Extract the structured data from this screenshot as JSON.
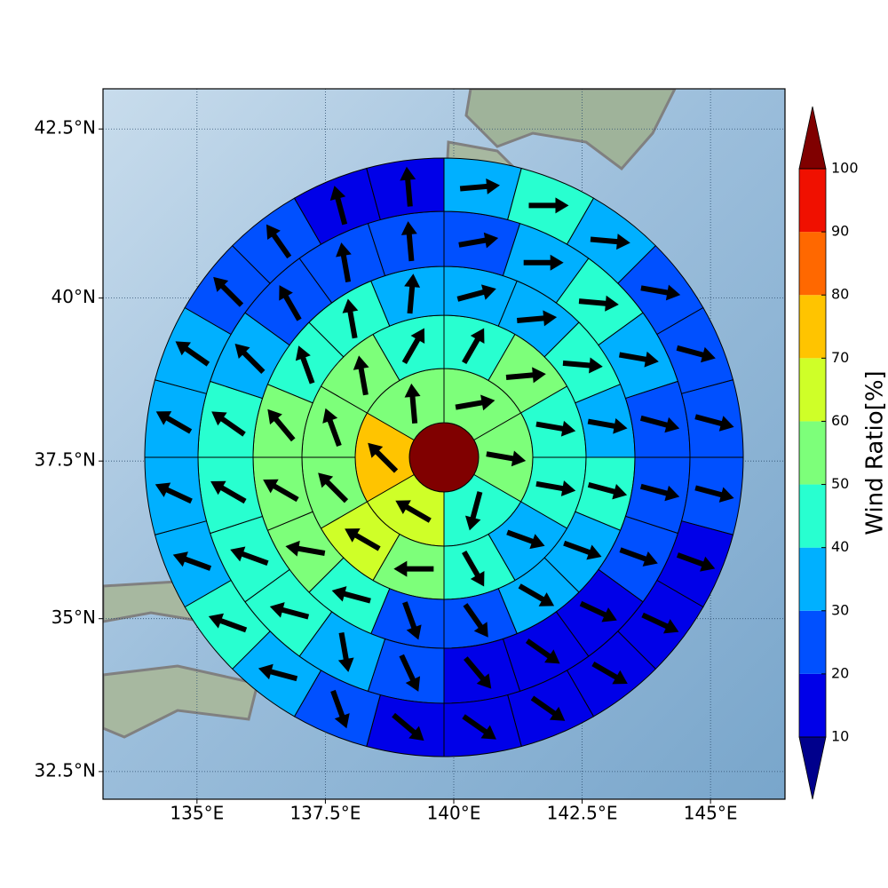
{
  "chart_data": {
    "type": "polar_map",
    "projection": "mercator",
    "xlim": [
      133.17,
      146.45
    ],
    "ylim": [
      32.04,
      43.08
    ],
    "grid": true,
    "xticks": [
      {
        "value": 135,
        "label": "135°E"
      },
      {
        "value": 137.5,
        "label": "137.5°E"
      },
      {
        "value": 140,
        "label": "140°E"
      },
      {
        "value": 142.5,
        "label": "142.5°E"
      },
      {
        "value": 145,
        "label": "145°E"
      }
    ],
    "yticks": [
      {
        "value": 32.5,
        "label": "32.5°N"
      },
      {
        "value": 35,
        "label": "35°N"
      },
      {
        "value": 37.5,
        "label": "37.5°N"
      },
      {
        "value": 40,
        "label": "40°N"
      },
      {
        "value": 42.5,
        "label": "42.5°N"
      }
    ],
    "rings": [
      {
        "values": [
          100
        ]
      },
      {
        "values": [
          55,
          55,
          45,
          65,
          75,
          55
        ],
        "directions": [
          80,
          100,
          195,
          300,
          315,
          355
        ]
      },
      {
        "values": [
          45,
          55,
          45,
          45,
          35,
          45,
          55,
          65,
          55,
          55,
          55,
          45
        ],
        "directions": [
          30,
          85,
          100,
          100,
          110,
          150,
          270,
          300,
          315,
          340,
          350,
          30
        ]
      },
      {
        "values": [
          35,
          35,
          45,
          35,
          45,
          35,
          35,
          25,
          25,
          45,
          55,
          55,
          55,
          45,
          45,
          35
        ],
        "directions": [
          75,
          85,
          95,
          100,
          105,
          110,
          120,
          145,
          160,
          285,
          280,
          300,
          320,
          340,
          350,
          5
        ]
      },
      {
        "values": [
          25,
          35,
          45,
          35,
          25,
          25,
          25,
          15,
          15,
          15,
          25,
          35,
          45,
          45,
          45,
          45,
          35,
          25,
          25,
          25
        ],
        "directions": [
          80,
          90,
          95,
          100,
          105,
          105,
          110,
          115,
          125,
          140,
          155,
          170,
          285,
          290,
          300,
          305,
          315,
          330,
          350,
          355
        ]
      },
      {
        "values": [
          35,
          45,
          35,
          25,
          25,
          25,
          25,
          15,
          15,
          15,
          15,
          15,
          15,
          25,
          35,
          45,
          35,
          35,
          35,
          35,
          25,
          25,
          15,
          15
        ],
        "directions": [
          85,
          90,
          95,
          100,
          105,
          105,
          105,
          110,
          115,
          120,
          125,
          125,
          130,
          160,
          285,
          290,
          290,
          295,
          300,
          305,
          315,
          325,
          345,
          355
        ]
      }
    ],
    "edge_color": "#000000",
    "arrow_color": "#000000",
    "colorbar": {
      "label": "Wind Ratio[%]",
      "ticks": [
        10,
        20,
        30,
        40,
        50,
        60,
        70,
        80,
        90,
        100
      ],
      "colors": [
        "#0000e8",
        "#0050ff",
        "#00b0ff",
        "#28ffd0",
        "#7dff7a",
        "#cfff28",
        "#ffc400",
        "#ff6800",
        "#f01000"
      ],
      "under": "#00008c",
      "over": "#800000"
    }
  }
}
